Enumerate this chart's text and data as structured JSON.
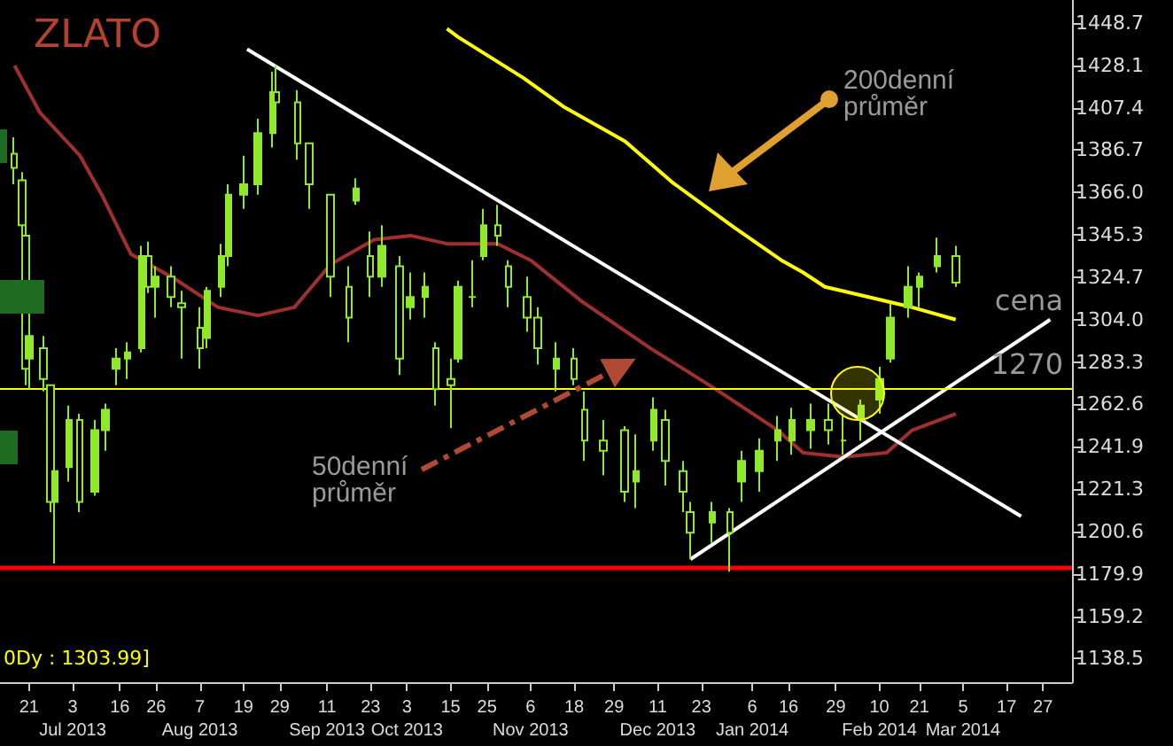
{
  "chart_data": {
    "type": "candlestick",
    "title": "ZLATO",
    "xlim": [
      "2013-06-13",
      "2014-04-04"
    ],
    "xticks": [
      {
        "value": "2013-06-21",
        "label": "21"
      },
      {
        "value": "2013-07-03",
        "label": "3\nJul 2013"
      },
      {
        "value": "2013-07-16",
        "label": "16"
      },
      {
        "value": "2013-07-26",
        "label": "26"
      },
      {
        "value": "2013-08-07",
        "label": "7\nAug 2013"
      },
      {
        "value": "2013-08-19",
        "label": "19"
      },
      {
        "value": "2013-08-29",
        "label": "29"
      },
      {
        "value": "2013-09-11",
        "label": "11\nSep 2013"
      },
      {
        "value": "2013-09-23",
        "label": "23"
      },
      {
        "value": "2013-10-03",
        "label": "3\nOct 2013"
      },
      {
        "value": "2013-10-15",
        "label": "15"
      },
      {
        "value": "2013-10-25",
        "label": "25"
      },
      {
        "value": "2013-11-06",
        "label": "6\nNov 2013"
      },
      {
        "value": "2013-11-18",
        "label": "18"
      },
      {
        "value": "2013-11-29",
        "label": "29"
      },
      {
        "value": "2013-12-11",
        "label": "11\nDec 2013"
      },
      {
        "value": "2013-12-23",
        "label": "23"
      },
      {
        "value": "2014-01-06",
        "label": "6\nJan 2014"
      },
      {
        "value": "2014-01-16",
        "label": "16"
      },
      {
        "value": "2014-01-29",
        "label": "29"
      },
      {
        "value": "2014-02-10",
        "label": "10\nFeb 2014"
      },
      {
        "value": "2014-02-21",
        "label": "21"
      },
      {
        "value": "2014-03-05",
        "label": "5\nMar 2014"
      },
      {
        "value": "2014-03-17",
        "label": "17"
      },
      {
        "value": "2014-03-27",
        "label": "27"
      }
    ],
    "ylim": [
      1127,
      1460
    ],
    "yticks": [
      1138.5,
      1159.2,
      1179.9,
      1200.6,
      1221.3,
      1241.9,
      1262.6,
      1283.3,
      {
        "value": 1304,
        "label": "1304.0"
      },
      1324.7,
      1345.3,
      {
        "value": 1366,
        "label": "1366.0"
      },
      1386.7,
      1407.4,
      1428.1,
      1448.7
    ],
    "series": [
      {
        "color": "#8fe82a",
        "x": [
          "2013-06-17",
          "2013-06-19",
          "2013-06-20",
          "2013-06-21",
          "2013-06-25",
          "2013-06-27",
          "2013-06-28",
          "2013-07-02",
          "2013-07-05",
          "2013-07-09",
          "2013-07-12",
          "2013-07-15",
          "2013-07-18",
          "2013-07-22",
          "2013-07-24",
          "2013-07-26",
          "2013-07-30",
          "2013-08-02",
          "2013-08-07",
          "2013-08-09",
          "2013-08-13",
          "2013-08-15",
          "2013-08-19",
          "2013-08-23",
          "2013-08-27",
          "2013-08-28",
          "2013-09-03",
          "2013-09-06",
          "2013-09-12",
          "2013-09-17",
          "2013-09-19",
          "2013-09-23",
          "2013-09-26",
          "2013-10-01",
          "2013-10-04",
          "2013-10-08",
          "2013-10-11",
          "2013-10-15",
          "2013-10-17",
          "2013-10-21",
          "2013-10-24",
          "2013-10-28",
          "2013-10-31",
          "2013-11-05",
          "2013-11-08",
          "2013-11-13",
          "2013-11-18",
          "2013-11-21",
          "2013-11-26",
          "2013-12-02",
          "2013-12-05",
          "2013-12-10",
          "2013-12-13",
          "2013-12-18",
          "2013-12-20",
          "2013-12-26",
          "2013-12-31",
          "2014-01-03",
          "2014-01-08",
          "2014-01-13",
          "2014-01-17",
          "2014-01-22",
          "2014-01-27",
          "2014-01-31",
          "2014-02-05",
          "2014-02-10",
          "2014-02-13",
          "2014-02-18",
          "2014-02-21",
          "2014-02-26",
          "2014-03-03"
        ],
        "ohlc": [
          [
            1385,
            1393,
            1370,
            1378
          ],
          [
            1372,
            1376,
            1345,
            1350
          ],
          [
            1345,
            1350,
            1272,
            1280
          ],
          [
            1285,
            1299,
            1270,
            1296
          ],
          [
            1290,
            1296,
            1269,
            1275
          ],
          [
            1272,
            1272,
            1210,
            1215
          ],
          [
            1215,
            1240,
            1185,
            1230
          ],
          [
            1232,
            1262,
            1225,
            1255
          ],
          [
            1255,
            1258,
            1210,
            1215
          ],
          [
            1220,
            1255,
            1218,
            1250
          ],
          [
            1250,
            1263,
            1240,
            1260
          ],
          [
            1280,
            1290,
            1272,
            1285
          ],
          [
            1285,
            1293,
            1275,
            1288
          ],
          [
            1290,
            1340,
            1288,
            1335
          ],
          [
            1335,
            1342,
            1317,
            1320
          ],
          [
            1320,
            1330,
            1305,
            1325
          ],
          [
            1325,
            1330,
            1310,
            1315
          ],
          [
            1312,
            1318,
            1285,
            1310
          ],
          [
            1300,
            1310,
            1280,
            1290
          ],
          [
            1295,
            1320,
            1290,
            1318
          ],
          [
            1320,
            1341,
            1315,
            1335
          ],
          [
            1335,
            1370,
            1330,
            1365
          ],
          [
            1365,
            1384,
            1358,
            1370
          ],
          [
            1370,
            1402,
            1365,
            1395
          ],
          [
            1395,
            1425,
            1388,
            1415
          ],
          [
            1415,
            1428,
            1400,
            1410
          ],
          [
            1410,
            1416,
            1382,
            1390
          ],
          [
            1390,
            1390,
            1358,
            1370
          ],
          [
            1365,
            1365,
            1315,
            1325
          ],
          [
            1320,
            1330,
            1293,
            1305
          ],
          [
            1362,
            1373,
            1360,
            1368
          ],
          [
            1335,
            1347,
            1315,
            1325
          ],
          [
            1325,
            1350,
            1320,
            1340
          ],
          [
            1330,
            1335,
            1277,
            1285
          ],
          [
            1310,
            1327,
            1304,
            1315
          ],
          [
            1315,
            1327,
            1305,
            1320
          ],
          [
            1290,
            1293,
            1262,
            1270
          ],
          [
            1275,
            1285,
            1251,
            1272
          ],
          [
            1285,
            1323,
            1283,
            1320
          ],
          [
            1315,
            1333,
            1310,
            1315
          ],
          [
            1335,
            1358,
            1333,
            1350
          ],
          [
            1350,
            1360,
            1340,
            1345
          ],
          [
            1330,
            1333,
            1310,
            1320
          ],
          [
            1315,
            1325,
            1298,
            1305
          ],
          [
            1305,
            1310,
            1282,
            1290
          ],
          [
            1280,
            1293,
            1269,
            1285
          ],
          [
            1285,
            1290,
            1272,
            1275
          ],
          [
            1260,
            1269,
            1235,
            1245
          ],
          [
            1245,
            1255,
            1228,
            1240
          ],
          [
            1250,
            1252,
            1215,
            1220
          ],
          [
            1225,
            1248,
            1212,
            1230
          ],
          [
            1245,
            1266,
            1240,
            1260
          ],
          [
            1255,
            1260,
            1223,
            1235
          ],
          [
            1230,
            1235,
            1210,
            1220
          ],
          [
            1210,
            1215,
            1187,
            1200
          ],
          [
            1205,
            1215,
            1195,
            1210
          ],
          [
            1210,
            1212,
            1181,
            1200
          ],
          [
            1225,
            1240,
            1215,
            1235
          ],
          [
            1230,
            1246,
            1220,
            1240
          ],
          [
            1245,
            1257,
            1235,
            1250
          ],
          [
            1245,
            1261,
            1238,
            1255
          ],
          [
            1250,
            1263,
            1241,
            1255
          ],
          [
            1255,
            1263,
            1243,
            1250
          ],
          [
            1245,
            1258,
            1238,
            1245
          ],
          [
            1255,
            1265,
            1245,
            1262
          ],
          [
            1265,
            1281,
            1258,
            1275
          ],
          [
            1285,
            1312,
            1283,
            1305
          ],
          [
            1310,
            1330,
            1305,
            1320
          ],
          [
            1320,
            1327,
            1310,
            1325
          ],
          [
            1330,
            1344,
            1327,
            1335
          ],
          [
            1335,
            1340,
            1320,
            1322
          ]
        ]
      },
      {
        "type": "line",
        "color": "#a03030",
        "x": [
          "2013-06-17",
          "2013-06-24",
          "2013-07-05",
          "2013-07-11",
          "2013-07-19",
          "2013-07-31",
          "2013-08-12",
          "2013-08-23",
          "2013-09-02",
          "2013-09-12",
          "2013-09-24",
          "2013-10-04",
          "2013-10-14",
          "2013-10-28",
          "2013-11-06",
          "2013-11-20",
          "2013-12-09",
          "2013-12-27",
          "2014-01-13",
          "2014-01-20",
          "2014-01-31",
          "2014-02-12",
          "2014-02-19",
          "2014-03-03"
        ],
        "values": [
          1428,
          1405,
          1384,
          1365,
          1336,
          1324,
          1310,
          1306,
          1310,
          1331,
          1343,
          1345,
          1341,
          1341,
          1333,
          1313,
          1290,
          1270,
          1250,
          1239,
          1237,
          1239,
          1250,
          1258
        ]
      },
      {
        "type": "line",
        "color": "#ffff00",
        "x": [
          "2013-10-14",
          "2013-10-17",
          "2013-11-04",
          "2013-11-15",
          "2013-12-02",
          "2013-12-15",
          "2014-01-01",
          "2014-01-14",
          "2014-01-20",
          "2014-01-26",
          "2014-02-07",
          "2014-02-19",
          "2014-03-03"
        ],
        "values": [
          1446,
          1442,
          1422,
          1408,
          1391,
          1371,
          1349,
          1333,
          1327,
          1320,
          1315,
          1310,
          1304
        ]
      },
      {
        "type": "line",
        "color": "#ffffff",
        "x": [
          "2013-08-20",
          "2014-03-21"
        ],
        "values": [
          1436,
          1208
        ]
      },
      {
        "type": "line",
        "color": "#ffffff",
        "x": [
          "2013-12-20",
          "2014-03-29"
        ],
        "values": [
          1187,
          1304
        ]
      }
    ],
    "ref_lines": [
      {
        "axis": "y",
        "value": 1270,
        "label": "cena 1270",
        "color": "#ffff00"
      },
      {
        "axis": "y",
        "value": 1183,
        "label": null,
        "color": "#ff0000"
      }
    ],
    "annotations": [
      "200denní průměr",
      "50denní průměr",
      "0Dy : 1303.99]"
    ]
  }
}
